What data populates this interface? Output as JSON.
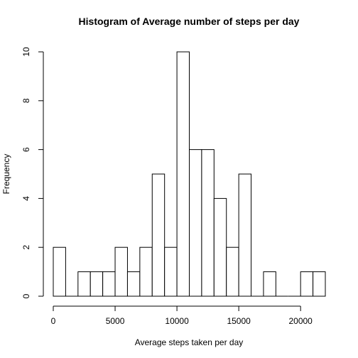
{
  "chart_data": {
    "type": "bar",
    "title": "Histogram of Average number of steps per day",
    "xlabel": "Average steps taken per day",
    "ylabel": "Frequency",
    "bin_width": 1000,
    "bins": [
      {
        "start": 0,
        "end": 1000,
        "count": 2
      },
      {
        "start": 1000,
        "end": 2000,
        "count": 0
      },
      {
        "start": 2000,
        "end": 3000,
        "count": 1
      },
      {
        "start": 3000,
        "end": 4000,
        "count": 1
      },
      {
        "start": 4000,
        "end": 5000,
        "count": 1
      },
      {
        "start": 5000,
        "end": 6000,
        "count": 2
      },
      {
        "start": 6000,
        "end": 7000,
        "count": 1
      },
      {
        "start": 7000,
        "end": 8000,
        "count": 2
      },
      {
        "start": 8000,
        "end": 9000,
        "count": 5
      },
      {
        "start": 9000,
        "end": 10000,
        "count": 2
      },
      {
        "start": 10000,
        "end": 11000,
        "count": 10
      },
      {
        "start": 11000,
        "end": 12000,
        "count": 6
      },
      {
        "start": 12000,
        "end": 13000,
        "count": 6
      },
      {
        "start": 13000,
        "end": 14000,
        "count": 4
      },
      {
        "start": 14000,
        "end": 15000,
        "count": 2
      },
      {
        "start": 15000,
        "end": 16000,
        "count": 5
      },
      {
        "start": 16000,
        "end": 17000,
        "count": 0
      },
      {
        "start": 17000,
        "end": 18000,
        "count": 1
      },
      {
        "start": 18000,
        "end": 19000,
        "count": 0
      },
      {
        "start": 19000,
        "end": 20000,
        "count": 0
      },
      {
        "start": 20000,
        "end": 21000,
        "count": 1
      },
      {
        "start": 21000,
        "end": 22000,
        "count": 1
      }
    ],
    "xlim": [
      0,
      22000
    ],
    "ylim": [
      0,
      10
    ],
    "x_ticks": [
      0,
      5000,
      10000,
      15000,
      20000
    ],
    "y_ticks": [
      0,
      2,
      4,
      6,
      8,
      10
    ],
    "grid": false,
    "legend": "none"
  }
}
